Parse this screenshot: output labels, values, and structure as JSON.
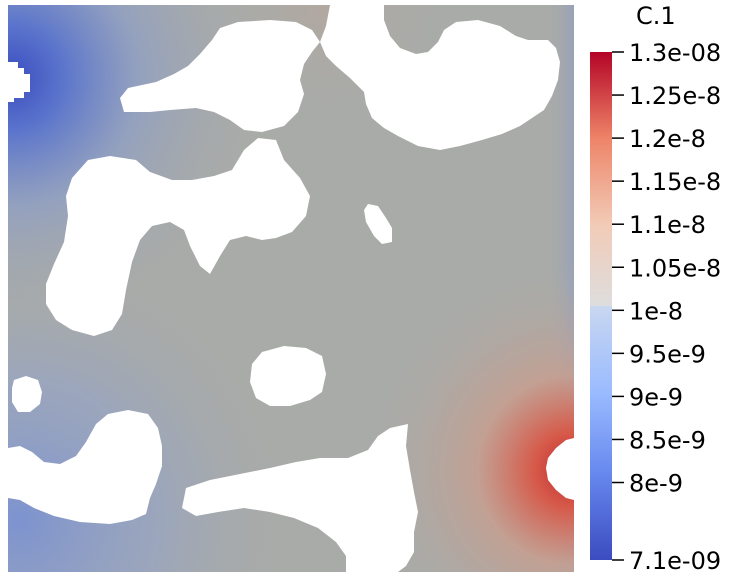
{
  "colorbar": {
    "title": "C.1",
    "max_label": "1.3e-08",
    "min_label": "7.1e-09",
    "max_value": 1.3e-08,
    "min_value": 7.1e-09,
    "ticks": [
      {
        "label": "1.25e-8",
        "value": 1.25e-08
      },
      {
        "label": "1.2e-8",
        "value": 1.2e-08
      },
      {
        "label": "1.15e-8",
        "value": 1.15e-08
      },
      {
        "label": "1.1e-8",
        "value": 1.1e-08
      },
      {
        "label": "1.05e-8",
        "value": 1.05e-08
      },
      {
        "label": "1e-8",
        "value": 1e-08
      },
      {
        "label": "9.5e-9",
        "value": 9.5e-09
      },
      {
        "label": "9e-9",
        "value": 9e-09
      },
      {
        "label": "8.5e-9",
        "value": 8.5e-09
      },
      {
        "label": "8e-9",
        "value": 8e-09
      }
    ],
    "colormap": [
      "#3b4cc0",
      "#7396f5",
      "#b0cbfc",
      "#dddddd",
      "#f7b89c",
      "#e9785d",
      "#b40426"
    ]
  },
  "field": {
    "background_color": "#a9aba8",
    "pore_color": "#ffffff",
    "high_value_color": "#c0282d",
    "low_value_color": "#3b4fb8"
  }
}
